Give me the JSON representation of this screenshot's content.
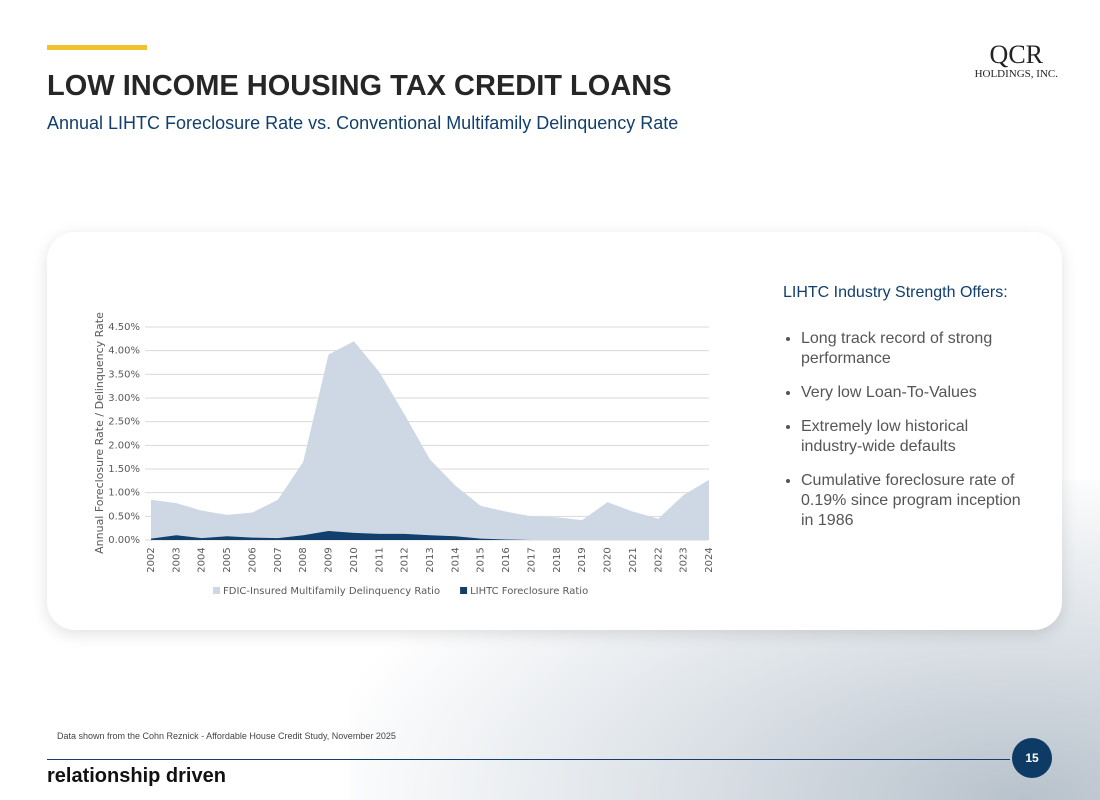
{
  "header": {
    "title": "LOW INCOME HOUSING TAX CREDIT LOANS",
    "subtitle": "Annual LIHTC Foreclosure Rate vs. Conventional Multifamily Delinquency Rate",
    "logo": {
      "main": "QCR",
      "sub": "HOLDINGS, INC."
    }
  },
  "chart_data": {
    "type": "area",
    "y_axis_label": "Annual Foreclosure Rate / Delinquency Rate",
    "categories": [
      "2002",
      "2003",
      "2004",
      "2005",
      "2006",
      "2007",
      "2008",
      "2009",
      "2010",
      "2011",
      "2012",
      "2013",
      "2014",
      "2015",
      "2016",
      "2017",
      "2018",
      "2019",
      "2020",
      "2021",
      "2022",
      "2023",
      "2024"
    ],
    "series": [
      {
        "name": "FDIC-Insured Multifamily Delinquency Ratio",
        "color": "#cdd8e4",
        "values": [
          0.85,
          0.78,
          0.62,
          0.53,
          0.58,
          0.85,
          1.65,
          3.92,
          4.2,
          3.55,
          2.65,
          1.7,
          1.15,
          0.72,
          0.6,
          0.5,
          0.48,
          0.42,
          0.8,
          0.6,
          0.45,
          0.95,
          1.27
        ]
      },
      {
        "name": "LIHTC Foreclosure Ratio",
        "color": "#123f6b",
        "values": [
          0.03,
          0.1,
          0.04,
          0.08,
          0.05,
          0.04,
          0.1,
          0.19,
          0.15,
          0.13,
          0.13,
          0.1,
          0.08,
          0.03,
          0.01,
          0,
          0,
          0,
          0,
          0,
          0,
          0,
          0
        ]
      }
    ],
    "ylim": [
      0,
      4.5
    ],
    "yticks": [
      {
        "value": 0,
        "label": "0.00%"
      },
      {
        "value": 0.5,
        "label": "0.50%"
      },
      {
        "value": 1,
        "label": "1.00%"
      },
      {
        "value": 1.5,
        "label": "1.50%"
      },
      {
        "value": 2,
        "label": "2.00%"
      },
      {
        "value": 2.5,
        "label": "2.50%"
      },
      {
        "value": 3,
        "label": "3.00%"
      },
      {
        "value": 3.5,
        "label": "3.50%"
      },
      {
        "value": 4,
        "label": "4.00%"
      },
      {
        "value": 4.5,
        "label": "4.50%"
      }
    ],
    "grid": true,
    "legend": "bottom"
  },
  "panel": {
    "heading": "LIHTC Industry Strength Offers:",
    "bullets": [
      "Long track record of strong performance",
      "Very low Loan-To-Values",
      "Extremely low historical industry-wide defaults",
      "Cumulative foreclosure rate of 0.19% since program inception in 1986"
    ]
  },
  "footer": {
    "source": "Data shown from the Cohn Reznick - Affordable House Credit Study, November 2025",
    "tagline": "relationship driven",
    "page": "15"
  }
}
